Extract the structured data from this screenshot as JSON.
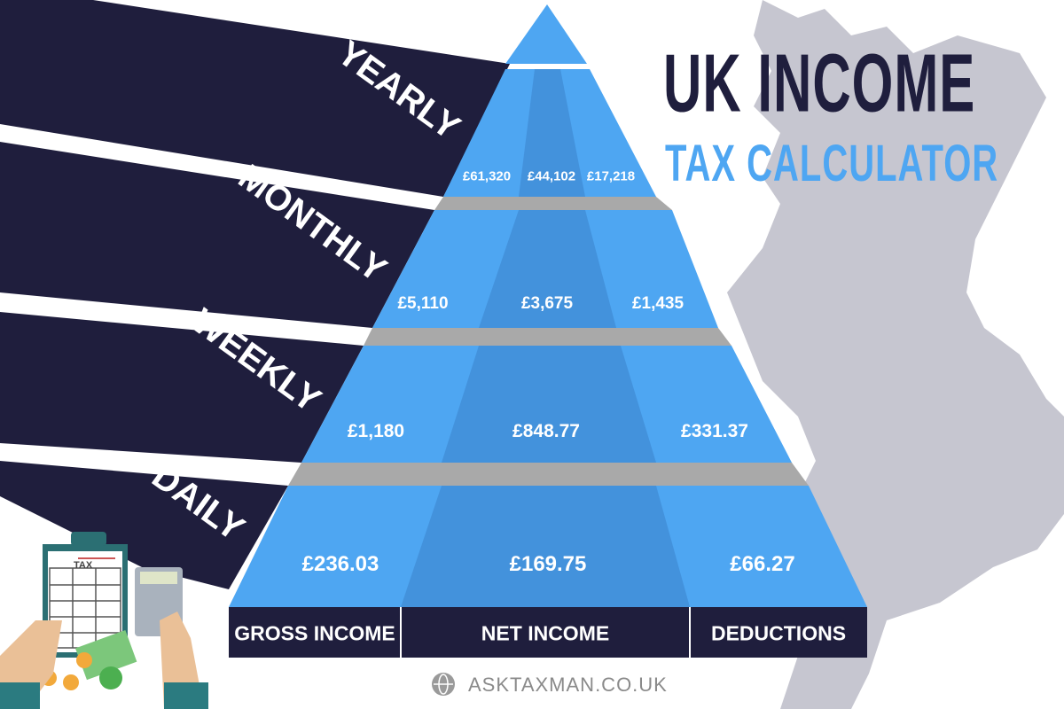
{
  "title": {
    "line1": "UK INCOME",
    "line2": "TAX CALCULATOR"
  },
  "periods": [
    {
      "label": "YEARLY",
      "gross": "£61,320",
      "net": "£44,102",
      "deductions": "£17,218"
    },
    {
      "label": "MONTHLY",
      "gross": "£5,110",
      "net": "£3,675",
      "deductions": "£1,435"
    },
    {
      "label": "WEEKLY",
      "gross": "£1,180",
      "net": "£848.77",
      "deductions": "£331.37"
    },
    {
      "label": "DAILY",
      "gross": "£236.03",
      "net": "£169.75",
      "deductions": "£66.27"
    }
  ],
  "columns": [
    "GROSS INCOME",
    "NET INCOME",
    "DEDUCTIONS"
  ],
  "illustration": {
    "clipboard_label": "TAX"
  },
  "footer": {
    "site": "ASKTAXMAN.CO.UK",
    "icon": "globe-icon"
  },
  "colors": {
    "navy": "#1f1e3d",
    "blue": "#4ea6f2",
    "blue_dark": "#4392dc",
    "gray": "#a9a9a9",
    "map": "#c5c5cf"
  }
}
